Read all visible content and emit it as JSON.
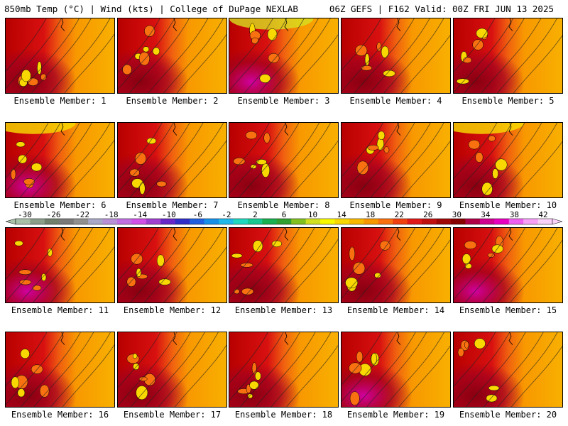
{
  "header": {
    "left": "850mb Temp (°C) | Wind (kts) | College of DuPage NEXLAB",
    "right": "06Z GEFS | F162 Valid: 00Z FRI JUN 13 2025"
  },
  "colorbar": {
    "labels": [
      "-30",
      "-26",
      "-22",
      "-18",
      "-14",
      "-10",
      "-6",
      "-2",
      "2",
      "6",
      "10",
      "14",
      "18",
      "22",
      "26",
      "30",
      "34",
      "38",
      "42"
    ],
    "colors": [
      "#a8c0a8",
      "#8a9e8a",
      "#70806c",
      "#7a7a7a",
      "#909090",
      "#a8a8c8",
      "#b890d8",
      "#c070e0",
      "#d050e8",
      "#a040d0",
      "#6828c8",
      "#3030c8",
      "#2060e0",
      "#1890e8",
      "#20b8e8",
      "#20d8c0",
      "#18c890",
      "#18b050",
      "#30a030",
      "#80c020",
      "#d0e020",
      "#f8f800",
      "#f8d800",
      "#f8b800",
      "#f89800",
      "#f87010",
      "#f04010",
      "#e01818",
      "#c01010",
      "#a00808",
      "#880000",
      "#b00048",
      "#d00090",
      "#e800c0",
      "#f060f0",
      "#f8a0f8",
      "#f8d0f8"
    ]
  },
  "panels": [
    {
      "caption": "Ensemble Member: 1"
    },
    {
      "caption": "Ensemble Member: 2"
    },
    {
      "caption": "Ensemble Member: 3"
    },
    {
      "caption": "Ensemble Member: 4"
    },
    {
      "caption": "Ensemble Member: 5"
    },
    {
      "caption": "Ensemble Member: 6"
    },
    {
      "caption": "Ensemble Member: 7"
    },
    {
      "caption": "Ensemble Member: 8"
    },
    {
      "caption": "Ensemble Member: 9"
    },
    {
      "caption": "Ensemble Member: 10"
    },
    {
      "caption": "Ensemble Member: 11"
    },
    {
      "caption": "Ensemble Member: 12"
    },
    {
      "caption": "Ensemble Member: 13"
    },
    {
      "caption": "Ensemble Member: 14"
    },
    {
      "caption": "Ensemble Member: 15"
    },
    {
      "caption": "Ensemble Member: 16"
    },
    {
      "caption": "Ensemble Member: 17"
    },
    {
      "caption": "Ensemble Member: 18"
    },
    {
      "caption": "Ensemble Member: 19"
    },
    {
      "caption": "Ensemble Member: 20"
    }
  ]
}
